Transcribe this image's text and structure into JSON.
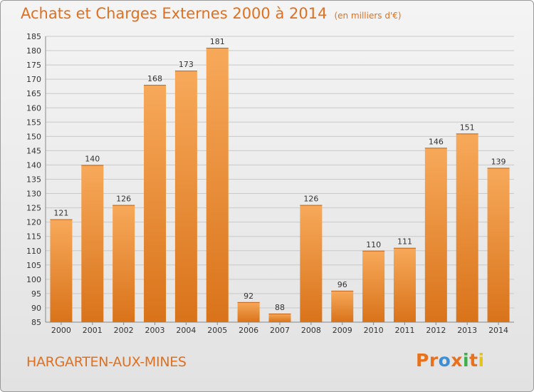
{
  "chart_data": {
    "type": "bar",
    "title": "Achats et Charges Externes 2000 à 2014",
    "subtitle": "(en milliers d'€)",
    "categories": [
      "2000",
      "2001",
      "2002",
      "2003",
      "2004",
      "2005",
      "2006",
      "2007",
      "2008",
      "2009",
      "2010",
      "2011",
      "2012",
      "2013",
      "2014"
    ],
    "values": [
      121,
      140,
      126,
      168,
      173,
      181,
      92,
      88,
      126,
      96,
      110,
      111,
      146,
      151,
      139
    ],
    "ylim": [
      85,
      185
    ],
    "yticks": [
      85,
      90,
      95,
      100,
      105,
      110,
      115,
      120,
      125,
      130,
      135,
      140,
      145,
      150,
      155,
      160,
      165,
      170,
      175,
      180,
      185
    ],
    "grid": true,
    "bar_color_top": "#f7a95a",
    "bar_color_bottom": "#d9731a"
  },
  "footer": {
    "place_name": "HARGARTEN-AUX-MINES",
    "logo": {
      "letters": [
        "P",
        "r",
        "o",
        "x",
        "i",
        "t",
        "i"
      ],
      "colors": [
        "#e8711c",
        "#e8711c",
        "#3a8fd6",
        "#e8711c",
        "#3cae4b",
        "#e8711c",
        "#e8c21c"
      ]
    }
  },
  "colors": {
    "accent": "#e0701f",
    "grid": "#c9c9c9"
  }
}
